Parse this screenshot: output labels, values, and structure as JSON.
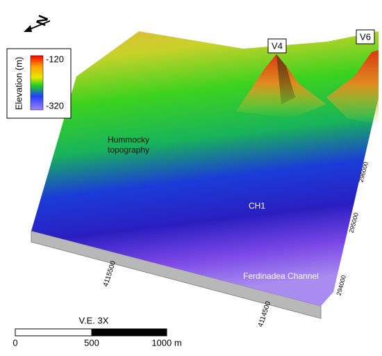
{
  "north_arrow": {
    "label": "N"
  },
  "legend": {
    "title": "Elevation (m)",
    "max": -120,
    "min": -320
  },
  "labels": {
    "v4": "V4",
    "v6": "V6",
    "hummocky": "Hummocky topography",
    "ch1": "CH1",
    "channel": "Ferdinadea Channel"
  },
  "coordinates": {
    "northing": [
      4115500,
      4114500
    ],
    "easting": [
      296000,
      295000,
      294000
    ]
  },
  "scale_bar": {
    "title": "V.E. 3X",
    "ticks": [
      0,
      500,
      "1000 m"
    ]
  }
}
